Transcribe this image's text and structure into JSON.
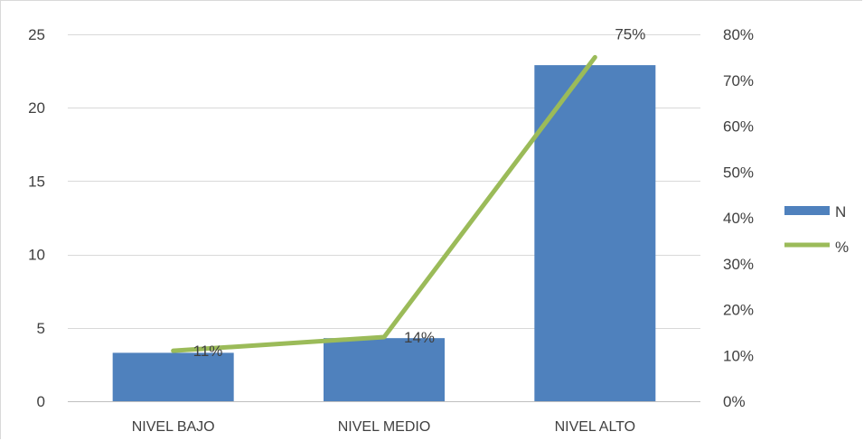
{
  "chart_data": {
    "type": "bar",
    "categories": [
      "NIVEL BAJO",
      "NIVEL MEDIO",
      "NIVEL ALTO"
    ],
    "series": [
      {
        "name": "N",
        "type": "bar",
        "axis": "left",
        "values": [
          3.3,
          4.3,
          22.9
        ],
        "color": "#4f81bd"
      },
      {
        "name": "%",
        "type": "line",
        "axis": "right",
        "values": [
          0.11,
          0.14,
          0.75
        ],
        "data_labels": [
          "11%",
          "14%",
          "75%"
        ],
        "color": "#9bbb59"
      }
    ],
    "ylim": [
      0,
      25
    ],
    "yticks": [
      0,
      5,
      10,
      15,
      20,
      25
    ],
    "ytick_labels": [
      "0",
      "5",
      "10",
      "15",
      "20",
      "25"
    ],
    "y2lim": [
      0,
      0.8
    ],
    "y2ticks": [
      0,
      0.1,
      0.2,
      0.3,
      0.4,
      0.5,
      0.6,
      0.7,
      0.8
    ],
    "y2tick_labels": [
      "0%",
      "10%",
      "20%",
      "30%",
      "40%",
      "50%",
      "60%",
      "70%",
      "80%"
    ],
    "grid": true,
    "legend": "right"
  }
}
